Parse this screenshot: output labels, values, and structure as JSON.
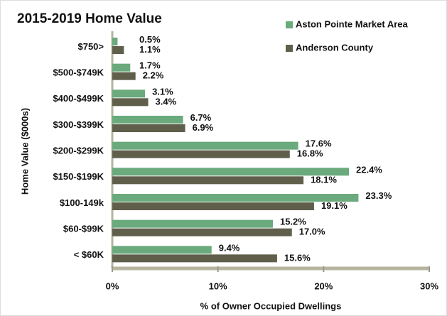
{
  "chart_data": {
    "type": "bar",
    "orientation": "horizontal",
    "title": "2015-2019 Home Value",
    "y_label": "Home Value ($000s)",
    "x_label": "% of Owner Occupied Dwellings",
    "categories": [
      "$750>",
      "$500-$749K",
      "$400-$499K",
      "$300-$399K",
      "$200-$299K",
      "$150-$199K",
      "$100-149k",
      "$60-$99K",
      "< $60K"
    ],
    "series": [
      {
        "name": "Aston Pointe Market Area",
        "color": "#6aaa7c",
        "values": [
          0.5,
          1.7,
          3.1,
          6.7,
          17.6,
          22.4,
          23.3,
          15.2,
          9.4
        ],
        "value_labels": [
          "0.5%",
          "1.7%",
          "3.1%",
          "6.7%",
          "17.6%",
          "22.4%",
          "23.3%",
          "15.2%",
          "9.4%"
        ]
      },
      {
        "name": "Anderson County",
        "color": "#5f5f4c",
        "values": [
          1.1,
          2.2,
          3.4,
          6.9,
          16.8,
          18.1,
          19.1,
          17.0,
          15.6
        ],
        "value_labels": [
          "1.1%",
          "2.2%",
          "3.4%",
          "6.9%",
          "16.8%",
          "18.1%",
          "19.1%",
          "17.0%",
          "15.6%"
        ]
      }
    ],
    "xlim": [
      0,
      30
    ],
    "xticks": [
      {
        "value": 0,
        "label": "0%"
      },
      {
        "value": 10,
        "label": "10%"
      },
      {
        "value": 20,
        "label": "20%"
      },
      {
        "value": 30,
        "label": "30%"
      }
    ],
    "legend": "top-right"
  }
}
